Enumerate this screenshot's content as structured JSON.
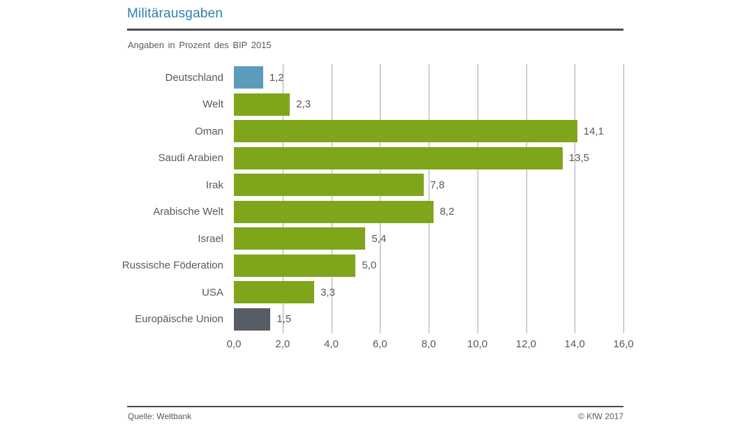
{
  "header": {
    "title": "Militärausgaben",
    "subtitle": "Angaben in Prozent des BIP 2015"
  },
  "footer": {
    "source": "Quelle: Weltbank",
    "copyright": "© KfW 2017"
  },
  "chart_data": {
    "type": "bar",
    "orientation": "horizontal",
    "title": "Militärausgaben",
    "subtitle": "Angaben in Prozent des BIP 2015",
    "unit": "Prozent des BIP 2015",
    "categories": [
      "Deutschland",
      "Welt",
      "Oman",
      "Saudi Arabien",
      "Irak",
      "Arabische Welt",
      "Israel",
      "Russische Föderation",
      "USA",
      "Europäische Union"
    ],
    "values": [
      1.2,
      2.3,
      14.1,
      13.5,
      7.8,
      8.2,
      5.4,
      5.0,
      3.3,
      1.5
    ],
    "value_labels": [
      "1,2",
      "2,3",
      "14,1",
      "13,5",
      "7,8",
      "8,2",
      "5,4",
      "5,0",
      "3,3",
      "1,5"
    ],
    "bar_colors": [
      "#5b9cbd",
      "#7fa51a",
      "#7fa51a",
      "#7fa51a",
      "#7fa51a",
      "#7fa51a",
      "#7fa51a",
      "#7fa51a",
      "#7fa51a",
      "#565d64"
    ],
    "xlim": [
      0,
      16
    ],
    "x_ticks": [
      "0,0",
      "2,0",
      "4,0",
      "6,0",
      "8,0",
      "10,0",
      "12,0",
      "14,0",
      "16,0"
    ],
    "grid": "vertical-only",
    "legend": "none",
    "colors": {
      "bar_default": "#7fa51a",
      "bar_highlight_blue": "#5b9cbd",
      "bar_highlight_gray": "#565d64",
      "gridline": "#aaaaaa",
      "text": "#595959",
      "title": "#2e7fad"
    }
  }
}
